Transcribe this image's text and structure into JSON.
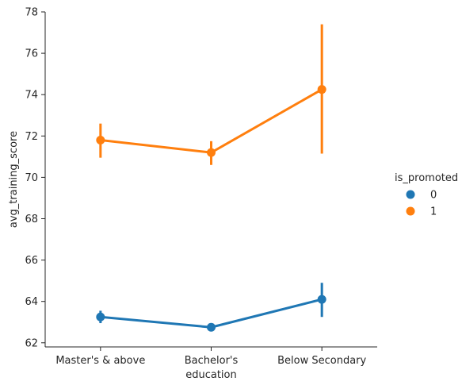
{
  "chart_data": {
    "type": "line",
    "xlabel": "education",
    "ylabel": "avg_training_score",
    "categories": [
      "Master's & above",
      "Bachelor's",
      "Below Secondary"
    ],
    "ylim": [
      61.8,
      78
    ],
    "yticks": [
      62,
      64,
      66,
      68,
      70,
      72,
      74,
      76,
      78
    ],
    "grid": false,
    "legend": {
      "title": "is_promoted",
      "placement": "right"
    },
    "series": [
      {
        "name": "0",
        "color": "#1f77b4",
        "values": [
          63.25,
          62.75,
          64.1
        ],
        "ci_low": [
          62.95,
          62.55,
          63.25
        ],
        "ci_high": [
          63.55,
          62.95,
          64.9
        ]
      },
      {
        "name": "1",
        "color": "#ff7f0e",
        "values": [
          71.8,
          71.2,
          74.25
        ],
        "ci_low": [
          70.95,
          70.6,
          71.15
        ],
        "ci_high": [
          72.6,
          71.75,
          77.4
        ]
      }
    ]
  }
}
